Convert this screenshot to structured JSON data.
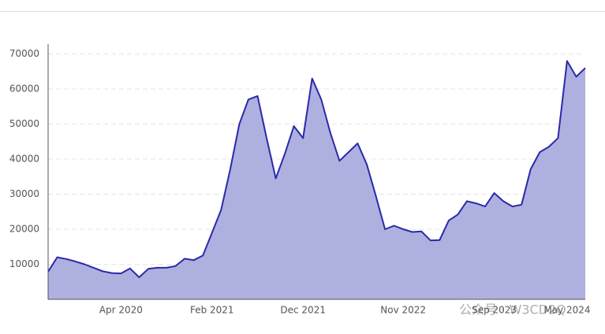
{
  "chart_data": {
    "type": "area",
    "x": [
      "2019-08",
      "2019-09",
      "2019-10",
      "2019-11",
      "2019-12",
      "2020-01",
      "2020-02",
      "2020-03",
      "2020-04",
      "2020-05",
      "2020-06",
      "2020-07",
      "2020-08",
      "2020-09",
      "2020-10",
      "2020-11",
      "2020-12",
      "2021-01",
      "2021-02",
      "2021-03",
      "2021-04",
      "2021-05",
      "2021-06",
      "2021-07",
      "2021-08",
      "2021-09",
      "2021-10",
      "2021-11",
      "2021-12",
      "2022-01",
      "2022-02",
      "2022-03",
      "2022-04",
      "2022-05",
      "2022-06",
      "2022-07",
      "2022-08",
      "2022-09",
      "2022-10",
      "2022-11",
      "2022-12",
      "2023-01",
      "2023-02",
      "2023-03",
      "2023-04",
      "2023-05",
      "2023-06",
      "2023-07",
      "2023-08",
      "2023-09",
      "2023-10",
      "2023-11",
      "2023-12",
      "2024-01",
      "2024-02",
      "2024-03",
      "2024-04",
      "2024-05",
      "2024-06",
      "2024-07"
    ],
    "series": [
      {
        "color": "#2a2aa8",
        "fill": "#aeb0e0",
        "values": [
          7900,
          12000,
          11500,
          10800,
          10000,
          9000,
          8000,
          7500,
          7400,
          8800,
          6300,
          8700,
          9000,
          9000,
          9500,
          11600,
          11200,
          12500,
          19000,
          25500,
          37000,
          50000,
          57000,
          58000,
          46000,
          34500,
          41500,
          49400,
          46000,
          63000,
          57000,
          47500,
          39500,
          42000,
          44500,
          38500,
          29500,
          20000,
          21000,
          20000,
          19200,
          19400,
          16800,
          16900,
          22500,
          24200,
          28000,
          27400,
          26500,
          30300,
          28000,
          26500,
          27000,
          37100,
          42000,
          43500,
          46000,
          68000,
          63500,
          66000
        ]
      }
    ],
    "xlim": [
      "2019-08",
      "2024-07"
    ],
    "xticks": [
      {
        "value": "2020-04",
        "label": "Apr 2020"
      },
      {
        "value": "2021-02",
        "label": "Feb 2021"
      },
      {
        "value": "2021-12",
        "label": "Dec 2021"
      },
      {
        "value": "2022-11",
        "label": "Nov 2022"
      },
      {
        "value": "2023-09",
        "label": "Sep 2023"
      },
      {
        "value": "2024-05",
        "label": "May 2024"
      }
    ],
    "ylim": [
      0,
      72800
    ],
    "yticks": [
      10000,
      20000,
      30000,
      40000,
      50000,
      60000,
      70000
    ],
    "grid": true
  },
  "watermark": "公众号 · W3CD2Q"
}
